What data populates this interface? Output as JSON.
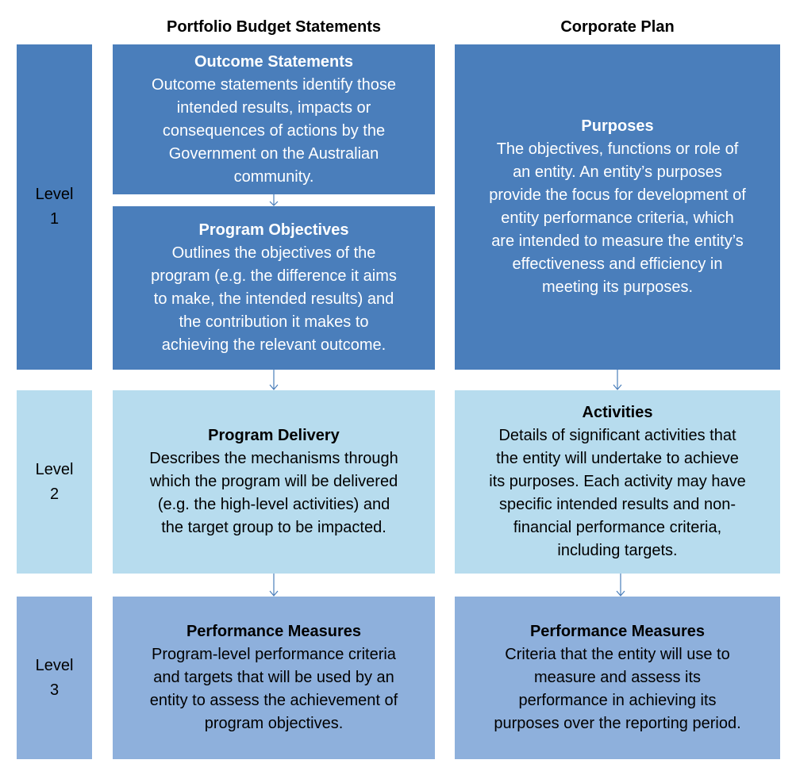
{
  "headers": {
    "pbs": "Portfolio Budget Statements",
    "corporate": "Corporate Plan"
  },
  "levels": [
    {
      "label": "Level",
      "number": "1"
    },
    {
      "label": "Level",
      "number": "2"
    },
    {
      "label": "Level",
      "number": "3"
    }
  ],
  "pbs": {
    "outcome": {
      "title": "Outcome Statements",
      "lines": [
        "Outcome statements identify those",
        "intended results, impacts or",
        "consequences of actions by the",
        "Government on the Australian",
        "community."
      ]
    },
    "objectives": {
      "title": "Program Objectives",
      "lines": [
        "Outlines the objectives of the",
        "program (e.g. the difference it aims",
        "to make, the intended results) and",
        "the contribution it makes to",
        "achieving the relevant outcome."
      ]
    },
    "delivery": {
      "title": "Program Delivery",
      "lines": [
        "Describes the mechanisms through",
        "which the program will be delivered",
        "(e.g. the high-level activities) and",
        "the target group to be impacted."
      ]
    },
    "measures": {
      "title": "Performance Measures",
      "lines": [
        "Program-level performance criteria",
        "and targets that will be used by an",
        "entity to assess the achievement of",
        "program objectives."
      ]
    }
  },
  "corporate": {
    "purposes": {
      "title": "Purposes",
      "lines": [
        "The objectives, functions or role of",
        "an entity. An entity’s purposes",
        "provide the focus for development of",
        "entity performance criteria, which",
        "are intended to measure the entity’s",
        "effectiveness and efficiency in",
        "meeting its purposes."
      ]
    },
    "activities": {
      "title": "Activities",
      "lines": [
        "Details of significant activities that",
        "the entity will undertake to achieve",
        "its purposes. Each activity may have",
        "specific intended results and non-",
        "financial performance criteria,",
        "including targets."
      ]
    },
    "measures": {
      "title": "Performance Measures",
      "lines": [
        "Criteria that the entity will use to",
        "measure and assess its",
        "performance in achieving its",
        "purposes over the reporting period."
      ]
    }
  },
  "colors": {
    "dark_blue": "#4a7ebb",
    "light_blue": "#b7dcee",
    "mid_blue": "#8eb0dc",
    "arrow": "#4a7ebb"
  }
}
